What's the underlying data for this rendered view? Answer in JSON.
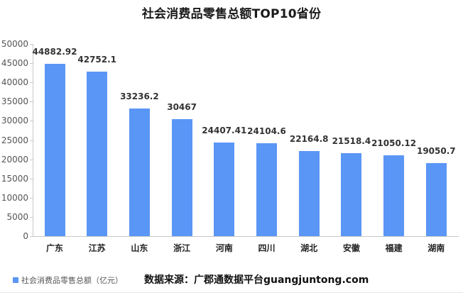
{
  "chart_data": {
    "type": "bar",
    "title": "社会消费品零售总额TOP10省份",
    "categories": [
      "广东",
      "江苏",
      "山东",
      "浙江",
      "河南",
      "四川",
      "湖北",
      "安徽",
      "福建",
      "湖南"
    ],
    "series": [
      {
        "name": "社会消费品零售总额（亿元）",
        "color": "#5a96f5",
        "values": [
          44882.92,
          42752.1,
          33236.2,
          30467,
          24407.41,
          24104.6,
          22164.8,
          21518.4,
          21050.12,
          19050.7
        ],
        "labels": [
          "44882.92",
          "42752.1",
          "33236.2",
          "30467",
          "24407.41",
          "24104.6",
          "22164.8",
          "21518.4",
          "21050.12",
          "19050.7"
        ]
      }
    ],
    "xlabel": "",
    "ylabel": "",
    "ylim": [
      0,
      50000
    ],
    "yticks": [
      "0",
      "5000",
      "10000",
      "15000",
      "20000",
      "25000",
      "30000",
      "35000",
      "40000",
      "45000",
      "50000"
    ],
    "grid": false,
    "legend_position": "bottom-left",
    "annotation": "数据来源：广郡通数据平台guangjuntong.com"
  },
  "legend": {
    "label": "社会消费品零售总额（亿元）"
  },
  "source": {
    "text": "数据来源：广郡通数据平台guangjuntong.com"
  }
}
